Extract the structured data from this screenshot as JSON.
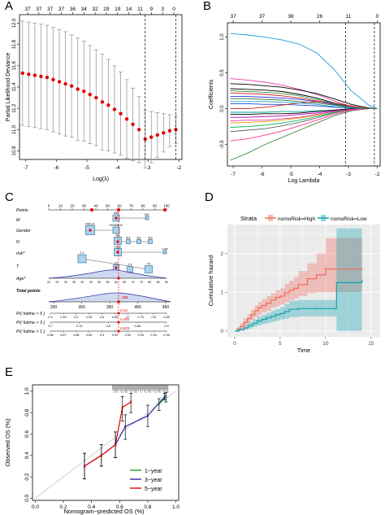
{
  "panels": {
    "A": {
      "letter": "A",
      "top_ticks": [
        "37",
        "37",
        "37",
        "37",
        "36",
        "34",
        "32",
        "29",
        "19",
        "14",
        "11",
        "9",
        "3",
        "0"
      ],
      "ylabel": "Partial Likelihood Deviance",
      "xlabel": "Log(λ)",
      "x_ticks": [
        "-7",
        "-6",
        "-5",
        "-4",
        "-3",
        "-2"
      ],
      "y_ticks": [
        "10.8",
        "11.0",
        "11.2",
        "11.4",
        "11.6",
        "11.8",
        "12.0"
      ]
    },
    "B": {
      "letter": "B",
      "top_ticks": [
        "37",
        "37",
        "36",
        "26",
        "11",
        "0"
      ],
      "ylabel": "Coefficients",
      "xlabel": "Log Lambda",
      "x_ticks": [
        "-7",
        "-6",
        "-5",
        "-4",
        "-3",
        "-2"
      ],
      "y_ticks": [
        "-0.5",
        "0.0",
        "0.5",
        "1.0"
      ]
    },
    "C": {
      "letter": "C",
      "rows": [
        "Points",
        "M",
        "Gender",
        "N",
        "risk*",
        "T",
        "Age*",
        "Total points",
        "Pr( futime > 5 )",
        "Pr( futime > 3 )",
        "Pr( futime > 1 )"
      ],
      "points_scale": [
        "0",
        "10",
        "20",
        "30",
        "40",
        "50",
        "60",
        "70",
        "80",
        "90",
        "100"
      ],
      "boxes": [
        "M0",
        "M1",
        "MALE",
        "FEMALE",
        "N0",
        "N1",
        "N2",
        "N3",
        "High",
        "Low",
        "T1",
        "T2",
        "T3",
        "T4"
      ],
      "total_scale": [
        "250",
        "300",
        "350",
        "400",
        "450"
      ],
      "prob_5": [
        "0.4",
        "0.45",
        "0.5",
        "0.55",
        "0.6",
        "0.65",
        "0.7",
        "0.75",
        "0.8",
        "0.85"
      ],
      "prob_3": [
        "0.7",
        "0.75",
        "0.8",
        "0.85",
        "0.9"
      ],
      "prob_1": [
        "0.86",
        "0.87",
        "0.88",
        "0.89",
        "0.9",
        "0.91",
        "0.92",
        "0.93",
        "0.94",
        "0.95"
      ],
      "highlight": {
        "total": "366",
        "p5": "0.34",
        "p3": "0.465",
        "p1": "0.829"
      }
    },
    "D": {
      "letter": "D",
      "legend_title": "Strata",
      "legend_entries": [
        "nomoRisk=High",
        "nomoRisk=Low"
      ],
      "ylabel": "Cumulative hazard",
      "xlabel": "Time",
      "x_ticks": [
        "0",
        "5",
        "10",
        "15"
      ],
      "y_ticks": [
        "0",
        "1",
        "2"
      ]
    },
    "E": {
      "letter": "E",
      "ylabel": "Observed OS (%)",
      "xlabel": "Nomogram−predicted OS (%)",
      "x_ticks": [
        "0.0",
        "0.2",
        "0.4",
        "0.6",
        "0.8",
        "1.0"
      ],
      "y_ticks": [
        "0.0",
        "0.2",
        "0.4",
        "0.6",
        "0.8",
        "1.0"
      ],
      "legend_entries": [
        "1−year",
        "3−year",
        "5−year"
      ]
    }
  },
  "colors": {
    "red": "#e60000",
    "green": "#2ca02c",
    "blue": "#2a2aa8",
    "high": "#f26a5b",
    "low": "#12a3b0"
  },
  "chart_data": [
    {
      "type": "scatter",
      "panel": "A",
      "xlabel": "Log(λ)",
      "ylabel": "Partial Likelihood Deviance",
      "xlim": [
        -7.2,
        -1.9
      ],
      "ylim": [
        10.72,
        12.08
      ],
      "x": [
        -7.1,
        -6.9,
        -6.7,
        -6.5,
        -6.3,
        -6.1,
        -5.9,
        -5.7,
        -5.5,
        -5.3,
        -5.1,
        -4.9,
        -4.7,
        -4.5,
        -4.3,
        -4.1,
        -3.9,
        -3.7,
        -3.5,
        -3.3,
        -3.1,
        -2.9,
        -2.7,
        -2.5,
        -2.3,
        -2.1
      ],
      "y": [
        11.53,
        11.52,
        11.51,
        11.5,
        11.49,
        11.47,
        11.45,
        11.43,
        11.41,
        11.38,
        11.36,
        11.33,
        11.3,
        11.26,
        11.23,
        11.19,
        11.15,
        11.1,
        11.05,
        11.0,
        10.91,
        10.93,
        10.95,
        10.97,
        10.99,
        11.0
      ],
      "upper": [
        12.02,
        12.01,
        12.0,
        11.99,
        11.98,
        11.96,
        11.94,
        11.92,
        11.89,
        11.86,
        11.83,
        11.79,
        11.75,
        11.71,
        11.66,
        11.6,
        11.54,
        11.47,
        11.39,
        11.31,
        11.18,
        11.17,
        11.16,
        11.15,
        11.14,
        11.13
      ],
      "lower": [
        11.04,
        11.03,
        11.02,
        11.01,
        11.0,
        10.98,
        10.96,
        10.94,
        10.93,
        10.9,
        10.89,
        10.87,
        10.85,
        10.81,
        10.8,
        10.78,
        10.76,
        10.73,
        10.71,
        10.69,
        10.64,
        10.69,
        10.74,
        10.79,
        10.84,
        10.87
      ],
      "vlines": [
        -3.1,
        -2.1
      ]
    },
    {
      "type": "line",
      "panel": "B",
      "xlabel": "Log Lambda",
      "ylabel": "Coefficients",
      "xlim": [
        -7.2,
        -1.9
      ],
      "ylim": [
        -0.8,
        1.2
      ],
      "x": [
        -7.1,
        -6.5,
        -5.9,
        -5.3,
        -4.7,
        -4.1,
        -3.5,
        -2.9,
        -2.3,
        -2.0
      ],
      "series": [
        {
          "color": "#1f9bd6",
          "values": [
            1.05,
            1.03,
            1.0,
            0.96,
            0.9,
            0.78,
            0.55,
            0.25,
            0.05,
            0.0
          ]
        },
        {
          "color": "#3c8c3c",
          "values": [
            -0.72,
            -0.62,
            -0.5,
            -0.4,
            -0.3,
            -0.2,
            -0.1,
            -0.03,
            0.0,
            0.0
          ]
        },
        {
          "color": "#e73eae",
          "values": [
            0.42,
            0.4,
            0.37,
            0.33,
            0.27,
            0.2,
            0.11,
            0.03,
            0.0,
            0.0
          ]
        },
        {
          "color": "#000000",
          "values": [
            0.28,
            0.27,
            0.26,
            0.24,
            0.2,
            0.15,
            0.08,
            0.02,
            0.0,
            0.0
          ]
        },
        {
          "color": "#d12020",
          "values": [
            0.22,
            0.21,
            0.2,
            0.18,
            0.15,
            0.11,
            0.06,
            0.01,
            0.0,
            0.0
          ]
        },
        {
          "color": "#2e7d32",
          "values": [
            0.14,
            0.14,
            0.13,
            0.12,
            0.1,
            0.08,
            0.05,
            0.02,
            0.0,
            0.0
          ]
        },
        {
          "color": "#1f4ed6",
          "values": [
            0.07,
            0.07,
            0.06,
            0.06,
            0.05,
            0.04,
            0.02,
            0.01,
            0.0,
            0.0
          ]
        },
        {
          "color": "#00a0a0",
          "values": [
            -0.05,
            -0.05,
            -0.05,
            -0.04,
            -0.04,
            -0.03,
            -0.02,
            0.0,
            0.0,
            0.0
          ]
        },
        {
          "color": "#b000b0",
          "values": [
            -0.12,
            -0.12,
            -0.11,
            -0.1,
            -0.08,
            -0.06,
            -0.03,
            0.0,
            0.0,
            0.0
          ]
        },
        {
          "color": "#e0a000",
          "values": [
            -0.2,
            -0.19,
            -0.18,
            -0.16,
            -0.13,
            -0.09,
            -0.04,
            -0.01,
            0.0,
            0.0
          ]
        },
        {
          "color": "#606060",
          "values": [
            -0.32,
            -0.3,
            -0.28,
            -0.24,
            -0.19,
            -0.13,
            -0.06,
            -0.01,
            0.0,
            0.0
          ]
        },
        {
          "color": "#ff3090",
          "values": [
            -0.45,
            -0.42,
            -0.37,
            -0.31,
            -0.24,
            -0.16,
            -0.08,
            -0.02,
            0.0,
            0.0
          ]
        },
        {
          "color": "#000000",
          "values": [
            0.35,
            0.34,
            0.32,
            0.3,
            0.26,
            0.21,
            0.14,
            0.06,
            0.01,
            0.0
          ]
        },
        {
          "color": "#3030e0",
          "values": [
            0.17,
            0.17,
            0.16,
            0.15,
            0.13,
            0.1,
            0.06,
            0.02,
            0.0,
            0.0
          ]
        },
        {
          "color": "#00b060",
          "values": [
            -0.26,
            -0.25,
            -0.23,
            -0.2,
            -0.16,
            -0.11,
            -0.05,
            -0.01,
            0.0,
            0.0
          ]
        },
        {
          "color": "#d12020",
          "values": [
            0.0,
            0.0,
            0.02,
            0.05,
            0.08,
            0.1,
            0.08,
            0.04,
            0.0,
            0.0
          ]
        },
        {
          "color": "#000000",
          "values": [
            -0.08,
            -0.08,
            -0.07,
            -0.07,
            -0.06,
            -0.04,
            -0.02,
            0.0,
            0.0,
            0.0
          ]
        },
        {
          "color": "#1f9bd6",
          "values": [
            0.1,
            0.1,
            0.1,
            0.09,
            0.08,
            0.06,
            0.03,
            0.01,
            0.0,
            0.0
          ]
        },
        {
          "color": "#e73eae",
          "values": [
            -0.17,
            -0.16,
            -0.16,
            -0.14,
            -0.12,
            -0.08,
            -0.04,
            -0.01,
            0.0,
            0.0
          ]
        },
        {
          "color": "#3c8c3c",
          "values": [
            0.25,
            0.24,
            0.23,
            0.21,
            0.18,
            0.13,
            0.07,
            0.02,
            0.0,
            0.0
          ]
        }
      ],
      "vlines": [
        -3.1,
        -2.1
      ]
    },
    {
      "type": "line",
      "panel": "D",
      "xlabel": "Time",
      "ylabel": "Cumulative hazard",
      "xlim": [
        -0.8,
        16
      ],
      "ylim": [
        -0.15,
        2.75
      ],
      "series": [
        {
          "name": "nomoRisk=High",
          "color": "#f26a5b",
          "x": [
            0,
            0.3,
            0.6,
            1,
            1.4,
            1.8,
            2.2,
            2.6,
            3,
            3.5,
            4,
            4.5,
            5,
            5.5,
            6,
            6.5,
            7,
            8,
            9,
            10,
            11,
            14
          ],
          "y": [
            0,
            0.05,
            0.12,
            0.22,
            0.32,
            0.42,
            0.52,
            0.6,
            0.66,
            0.72,
            0.8,
            0.86,
            0.9,
            0.98,
            1.05,
            1.1,
            1.2,
            1.35,
            1.45,
            1.6,
            1.6,
            1.6
          ],
          "upper": [
            0,
            0.1,
            0.2,
            0.32,
            0.44,
            0.55,
            0.66,
            0.75,
            0.82,
            0.9,
            0.98,
            1.05,
            1.1,
            1.22,
            1.3,
            1.4,
            1.55,
            1.75,
            2.0,
            2.4,
            2.4,
            2.4
          ],
          "lower": [
            0,
            0.01,
            0.05,
            0.12,
            0.2,
            0.28,
            0.36,
            0.42,
            0.48,
            0.52,
            0.6,
            0.64,
            0.68,
            0.74,
            0.8,
            0.84,
            0.9,
            0.98,
            1.0,
            1.0,
            1.0,
            1.0
          ]
        },
        {
          "name": "nomoRisk=Low",
          "color": "#12a3b0",
          "x": [
            0,
            0.5,
            1,
            1.5,
            2,
            2.5,
            3,
            3.5,
            4,
            4.5,
            5,
            5.5,
            6,
            7,
            8,
            9,
            10,
            11,
            11.2,
            14
          ],
          "y": [
            0,
            0.03,
            0.08,
            0.14,
            0.2,
            0.26,
            0.3,
            0.34,
            0.38,
            0.42,
            0.45,
            0.5,
            0.56,
            0.58,
            0.58,
            0.58,
            0.58,
            0.58,
            1.25,
            1.3
          ],
          "upper": [
            0,
            0.06,
            0.14,
            0.22,
            0.3,
            0.37,
            0.42,
            0.47,
            0.52,
            0.57,
            0.62,
            0.7,
            0.78,
            0.8,
            0.8,
            0.8,
            0.8,
            0.8,
            2.65,
            2.65
          ],
          "lower": [
            0,
            0.01,
            0.03,
            0.07,
            0.11,
            0.15,
            0.18,
            0.21,
            0.24,
            0.27,
            0.3,
            0.32,
            0.36,
            0.38,
            0.38,
            0.38,
            0.38,
            0.38,
            0,
            0
          ]
        }
      ]
    },
    {
      "type": "scatter",
      "panel": "E",
      "xlabel": "Nomogram−predicted OS (%)",
      "ylabel": "Observed OS (%)",
      "xlim": [
        0,
        1.0
      ],
      "ylim": [
        0,
        1.0
      ],
      "series": [
        {
          "name": "1−year",
          "color": "#2ca02c",
          "x": [
            0.88,
            0.93
          ],
          "y": [
            0.88,
            0.95
          ],
          "lo": [
            0.82,
            0.9
          ],
          "hi": [
            0.93,
            0.99
          ]
        },
        {
          "name": "3−year",
          "color": "#2a2aa8",
          "x": [
            0.35,
            0.47,
            0.57,
            0.64,
            0.8,
            0.92
          ],
          "y": [
            0.3,
            0.4,
            0.5,
            0.67,
            0.77,
            0.95
          ],
          "lo": [
            0.18,
            0.3,
            0.38,
            0.55,
            0.67,
            0.92
          ],
          "hi": [
            0.42,
            0.5,
            0.62,
            0.78,
            0.87,
            0.98
          ]
        },
        {
          "name": "5−year",
          "color": "#e60000",
          "x": [
            0.35,
            0.47,
            0.57,
            0.62,
            0.68
          ],
          "y": [
            0.3,
            0.4,
            0.5,
            0.85,
            0.9
          ],
          "lo": [
            0.18,
            0.3,
            0.38,
            0.72,
            0.8
          ],
          "hi": [
            0.42,
            0.5,
            0.62,
            0.95,
            0.98
          ]
        }
      ]
    }
  ]
}
